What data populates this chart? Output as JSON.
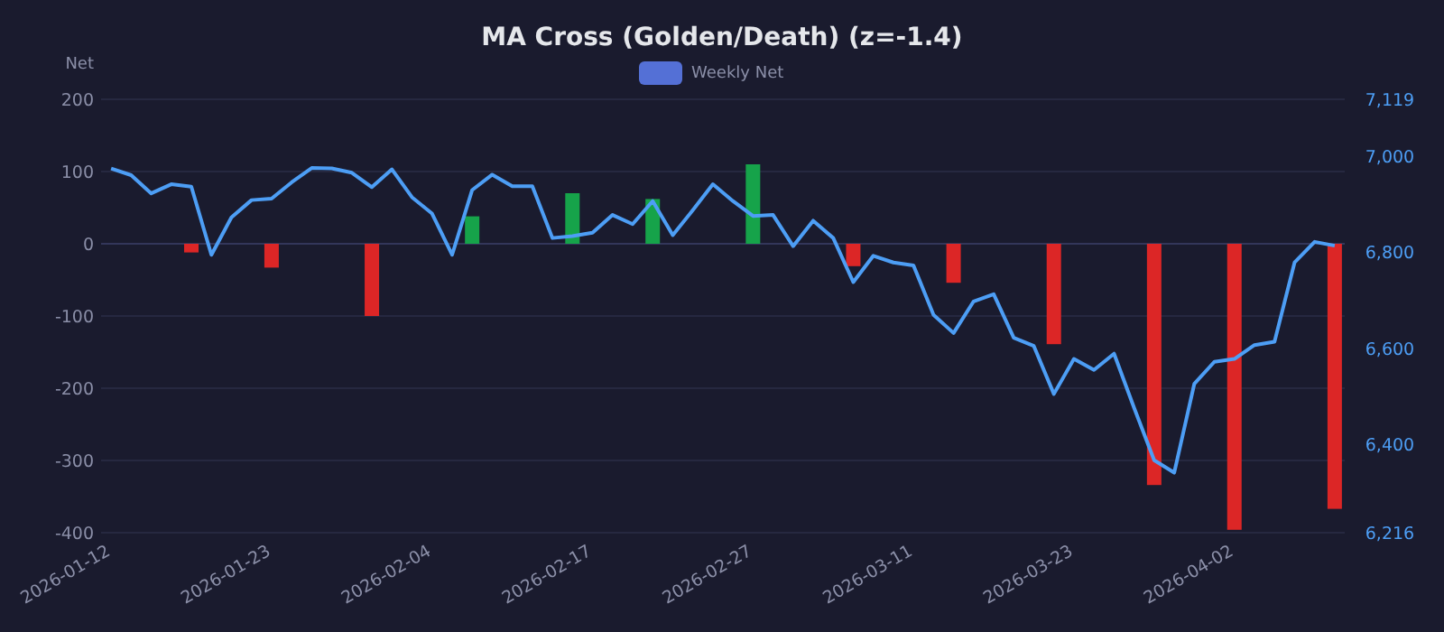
{
  "chart_data": {
    "type": "bar",
    "title": "MA Cross (Golden/Death) (z=-1.4)",
    "ylabel": "Net",
    "categories": [
      "2026-01-12",
      null,
      null,
      null,
      null,
      null,
      null,
      null,
      "2026-01-23",
      null,
      null,
      null,
      null,
      null,
      null,
      null,
      "2026-02-04",
      null,
      null,
      null,
      null,
      null,
      null,
      null,
      "2026-02-17",
      null,
      null,
      null,
      null,
      null,
      null,
      null,
      "2026-02-27",
      null,
      null,
      null,
      null,
      null,
      null,
      null,
      "2026-03-11",
      null,
      null,
      null,
      null,
      null,
      null,
      null,
      "2026-03-23",
      null,
      null,
      null,
      null,
      null,
      null,
      null,
      "2026-04-02",
      null,
      null,
      null,
      null,
      null
    ],
    "series": [
      {
        "name": "Weekly Net",
        "color": "#5470d6",
        "values": [
          null,
          null,
          null,
          null,
          -12,
          null,
          null,
          null,
          -33,
          null,
          null,
          null,
          null,
          -100,
          null,
          null,
          null,
          null,
          38,
          null,
          null,
          null,
          null,
          70,
          null,
          null,
          null,
          62,
          null,
          null,
          null,
          null,
          110,
          null,
          null,
          null,
          null,
          -31,
          null,
          null,
          null,
          null,
          -54,
          null,
          null,
          null,
          null,
          -139,
          null,
          null,
          null,
          null,
          -334,
          null,
          null,
          null,
          -396,
          null,
          null,
          null,
          null,
          -367
        ],
        "colors": [
          null,
          null,
          null,
          null,
          "#dc2626",
          null,
          null,
          null,
          "#dc2626",
          null,
          null,
          null,
          null,
          "#dc2626",
          null,
          null,
          null,
          null,
          "#16a34a",
          null,
          null,
          null,
          null,
          "#16a34a",
          null,
          null,
          null,
          "#16a34a",
          null,
          null,
          null,
          null,
          "#16a34a",
          null,
          null,
          null,
          null,
          "#dc2626",
          null,
          null,
          null,
          null,
          "#dc2626",
          null,
          null,
          null,
          null,
          "#dc2626",
          null,
          null,
          null,
          null,
          "#dc2626",
          null,
          null,
          null,
          "#dc2626",
          null,
          null,
          null,
          null,
          "#dc2626"
        ]
      },
      {
        "type": "line",
        "axis": "y2",
        "color": "#4d9ef5",
        "values": [
          6975,
          6961,
          6923,
          6942,
          6937,
          6795,
          6873,
          6909,
          6912,
          6946,
          6976,
          6975,
          6966,
          6936,
          6973,
          6915,
          6881,
          6795,
          6930,
          6962,
          6938,
          6938,
          6830,
          6834,
          6841,
          6878,
          6859,
          6907,
          6836,
          6888,
          6942,
          6907,
          6876,
          6878,
          6813,
          6866,
          6830,
          6738,
          6793,
          6779,
          6773,
          6670,
          6632,
          6698,
          6713,
          6622,
          6605,
          6505,
          6578,
          6555,
          6589,
          6476,
          6367,
          6341,
          6526,
          6572,
          6578,
          6607,
          6614,
          6779,
          6822,
          6814
        ]
      }
    ],
    "ylim": [
      -400,
      200
    ],
    "yticks": [
      -400,
      -300,
      -200,
      -100,
      0,
      100,
      200
    ],
    "y2lim": [
      6216,
      7119
    ],
    "y2ticks": [
      {
        "value": 6216,
        "label": "6,216"
      },
      {
        "value": 6400,
        "label": "6,400"
      },
      {
        "value": 6600,
        "label": "6,600"
      },
      {
        "value": 6800,
        "label": "6,800"
      },
      {
        "value": 7000,
        "label": "7,000"
      },
      {
        "value": 7119,
        "label": "7,119"
      }
    ],
    "grid": "y",
    "legend": "top",
    "marker": "none",
    "line_style": "solid"
  }
}
